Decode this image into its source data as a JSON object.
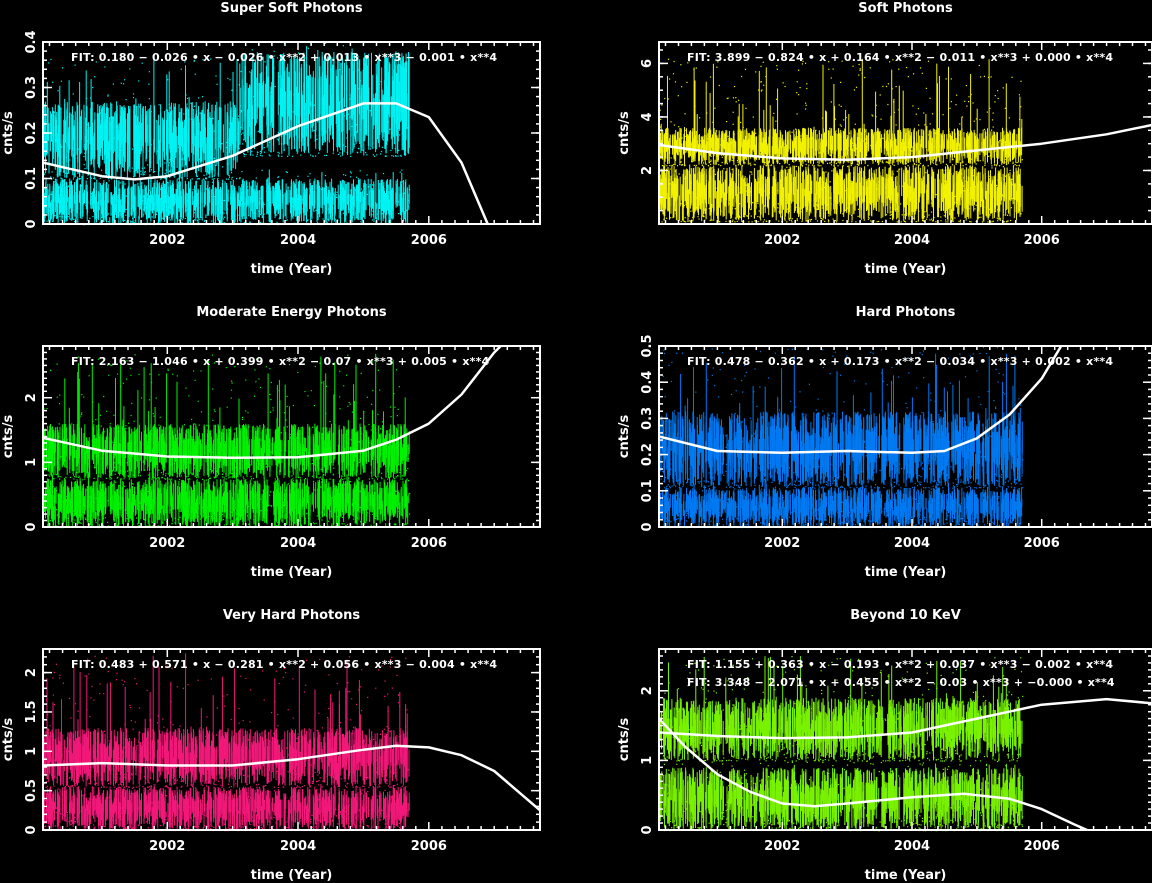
{
  "chart_data": [
    {
      "type": "scatter",
      "title": "Super Soft Photons",
      "xlabel": "time (Year)",
      "ylabel": "cnts/s",
      "xlim": [
        2000.1,
        2007.7
      ],
      "ylim": [
        0,
        0.4
      ],
      "xticks": [
        "2002",
        "2004",
        "2006"
      ],
      "yticks": [
        "0",
        "0.1",
        "0.2",
        "0.3",
        "0.4"
      ],
      "color": "#00ffff",
      "data_end": 2005.7,
      "fits": [
        {
          "label": "FIT:  0.180 − 0.026 • x − 0.026 • x**2 + 0.013 • x**3 − 0.001 • x**4",
          "points": [
            [
              2000.1,
              0.135
            ],
            [
              2001.0,
              0.105
            ],
            [
              2001.5,
              0.098
            ],
            [
              2002.0,
              0.105
            ],
            [
              2003.0,
              0.15
            ],
            [
              2004.0,
              0.215
            ],
            [
              2005.0,
              0.265
            ],
            [
              2005.5,
              0.265
            ],
            [
              2006.0,
              0.235
            ],
            [
              2006.5,
              0.135
            ],
            [
              2006.9,
              0.0
            ]
          ]
        }
      ],
      "bands": [
        {
          "from": 2000.1,
          "to": 2003.1,
          "y": [
            0.1,
            0.27
          ],
          "spike_max": 0.37
        },
        {
          "from": 2003.1,
          "to": 2005.7,
          "y": [
            0.15,
            0.38
          ],
          "spike_max": 0.4
        },
        {
          "from": 2000.1,
          "to": 2005.7,
          "y": [
            0.0,
            0.1
          ],
          "spike_max": 0.12
        }
      ]
    },
    {
      "type": "scatter",
      "title": "Soft Photons",
      "xlabel": "time (Year)",
      "ylabel": "cnts/s",
      "xlim": [
        2000.1,
        2007.7
      ],
      "ylim": [
        0,
        6.8
      ],
      "xticks": [
        "2002",
        "2004",
        "2006"
      ],
      "yticks": [
        "2",
        "4",
        "6"
      ],
      "color": "#ffff00",
      "data_end": 2005.7,
      "fits": [
        {
          "label": "FIT:  3.899 − 0.824 • x + 0.164 • x**2 − 0.011 • x**3 + 0.000 • x**4",
          "points": [
            [
              2000.1,
              2.95
            ],
            [
              2001.0,
              2.65
            ],
            [
              2002.0,
              2.45
            ],
            [
              2003.0,
              2.4
            ],
            [
              2004.0,
              2.5
            ],
            [
              2005.0,
              2.75
            ],
            [
              2006.0,
              3.0
            ],
            [
              2007.0,
              3.35
            ],
            [
              2007.7,
              3.7
            ]
          ]
        }
      ],
      "bands": [
        {
          "from": 2000.1,
          "to": 2005.7,
          "y": [
            2.2,
            3.6
          ],
          "spike_max": 6.2
        },
        {
          "from": 2000.1,
          "to": 2005.7,
          "y": [
            0.1,
            2.2
          ],
          "spike_max": 2.4
        }
      ]
    },
    {
      "type": "scatter",
      "title": "Moderate Energy Photons",
      "xlabel": "time (Year)",
      "ylabel": "cnts/s",
      "xlim": [
        2000.1,
        2007.7
      ],
      "ylim": [
        0,
        2.8
      ],
      "xticks": [
        "2002",
        "2004",
        "2006"
      ],
      "yticks": [
        "0",
        "1",
        "2"
      ],
      "color": "#00ff00",
      "data_end": 2005.7,
      "fits": [
        {
          "label": "FIT:  2.163 − 1.046 • x + 0.399 • x**2 − 0.07 • x**3 + 0.005 • x**4",
          "points": [
            [
              2000.1,
              1.38
            ],
            [
              2001.0,
              1.18
            ],
            [
              2002.0,
              1.09
            ],
            [
              2003.0,
              1.07
            ],
            [
              2004.0,
              1.08
            ],
            [
              2005.0,
              1.18
            ],
            [
              2005.5,
              1.35
            ],
            [
              2006.0,
              1.6
            ],
            [
              2006.5,
              2.05
            ],
            [
              2007.0,
              2.7
            ],
            [
              2007.1,
              2.8
            ]
          ]
        }
      ],
      "bands": [
        {
          "from": 2000.1,
          "to": 2005.7,
          "y": [
            0.75,
            1.6
          ],
          "spike_max": 2.7
        },
        {
          "from": 2000.1,
          "to": 2005.7,
          "y": [
            0.0,
            0.75
          ],
          "spike_max": 0.85
        }
      ]
    },
    {
      "type": "scatter",
      "title": "Hard Photons",
      "xlabel": "time (Year)",
      "ylabel": "cnts/s",
      "xlim": [
        2000.1,
        2007.7
      ],
      "ylim": [
        0,
        0.5
      ],
      "xticks": [
        "2002",
        "2004",
        "2006"
      ],
      "yticks": [
        "0",
        "0.1",
        "0.2",
        "0.3",
        "0.4",
        "0.5"
      ],
      "color": "#0080ff",
      "data_end": 2005.7,
      "fits": [
        {
          "label": "FIT:  0.478 − 0.362 • x + 0.173 • x**2 − 0.034 • x**3 + 0.002 • x**4",
          "points": [
            [
              2000.1,
              0.25
            ],
            [
              2001.0,
              0.21
            ],
            [
              2002.0,
              0.205
            ],
            [
              2003.0,
              0.21
            ],
            [
              2004.0,
              0.205
            ],
            [
              2004.5,
              0.21
            ],
            [
              2005.0,
              0.245
            ],
            [
              2005.5,
              0.31
            ],
            [
              2006.0,
              0.41
            ],
            [
              2006.3,
              0.5
            ]
          ]
        }
      ],
      "bands": [
        {
          "from": 2000.1,
          "to": 2005.7,
          "y": [
            0.11,
            0.32
          ],
          "spike_max": 0.5
        },
        {
          "from": 2000.1,
          "to": 2005.7,
          "y": [
            0.0,
            0.11
          ],
          "spike_max": 0.13
        }
      ]
    },
    {
      "type": "scatter",
      "title": "Very Hard  Photons",
      "xlabel": "time (Year)",
      "ylabel": "cnts/s",
      "xlim": [
        2000.1,
        2007.7
      ],
      "ylim": [
        0,
        2.3
      ],
      "xticks": [
        "2002",
        "2004",
        "2006"
      ],
      "yticks": [
        "0",
        "0.5",
        "1",
        "1.5",
        "2"
      ],
      "color": "#ff1a80",
      "data_end": 2005.7,
      "fits": [
        {
          "label": "FIT:  0.483 + 0.571 • x − 0.281 • x**2 + 0.056 • x**3 − 0.004 • x**4",
          "points": [
            [
              2000.1,
              0.82
            ],
            [
              2001.0,
              0.85
            ],
            [
              2002.0,
              0.82
            ],
            [
              2003.0,
              0.82
            ],
            [
              2004.0,
              0.9
            ],
            [
              2005.0,
              1.02
            ],
            [
              2005.5,
              1.07
            ],
            [
              2006.0,
              1.05
            ],
            [
              2006.5,
              0.95
            ],
            [
              2007.0,
              0.75
            ],
            [
              2007.7,
              0.25
            ]
          ]
        }
      ],
      "bands": [
        {
          "from": 2000.1,
          "to": 2005.7,
          "y": [
            0.55,
            1.3
          ],
          "spike_max": 2.25
        },
        {
          "from": 2000.1,
          "to": 2005.7,
          "y": [
            0.0,
            0.55
          ],
          "spike_max": 0.6
        }
      ]
    },
    {
      "type": "scatter",
      "title": "Beyond 10 KeV",
      "xlabel": "time (Year)",
      "ylabel": "cnts/s",
      "xlim": [
        2000.1,
        2007.7
      ],
      "ylim": [
        0,
        2.6
      ],
      "xticks": [
        "2002",
        "2004",
        "2006"
      ],
      "yticks": [
        "0",
        "1",
        "2"
      ],
      "color": "#80ff00",
      "data_end": 2005.7,
      "fits": [
        {
          "label": "FIT:  1.155 + 0.363 • x − 0.193 • x**2 + 0.037 • x**3 − 0.002 • x**4",
          "points": [
            [
              2000.1,
              1.4
            ],
            [
              2001.0,
              1.35
            ],
            [
              2002.0,
              1.32
            ],
            [
              2003.0,
              1.33
            ],
            [
              2004.0,
              1.4
            ],
            [
              2005.0,
              1.6
            ],
            [
              2006.0,
              1.8
            ],
            [
              2007.0,
              1.88
            ],
            [
              2007.7,
              1.82
            ]
          ]
        },
        {
          "label": "FIT:  3.348 − 2.071 • x + 0.455 • x**2 − 0.03 • x**3 + −0.000 • x**4",
          "points": [
            [
              2000.1,
              1.6
            ],
            [
              2000.5,
              1.2
            ],
            [
              2001.0,
              0.8
            ],
            [
              2001.5,
              0.55
            ],
            [
              2002.0,
              0.38
            ],
            [
              2002.5,
              0.34
            ],
            [
              2003.0,
              0.38
            ],
            [
              2004.0,
              0.47
            ],
            [
              2004.8,
              0.52
            ],
            [
              2005.5,
              0.45
            ],
            [
              2006.0,
              0.3
            ],
            [
              2006.5,
              0.08
            ],
            [
              2006.7,
              0.0
            ]
          ]
        }
      ],
      "bands": [
        {
          "from": 2000.1,
          "to": 2005.7,
          "y": [
            1.0,
            1.9
          ],
          "spike_max": 2.5
        },
        {
          "from": 2000.1,
          "to": 2005.7,
          "y": [
            0.0,
            0.9
          ],
          "spike_max": 1.0
        }
      ]
    }
  ]
}
